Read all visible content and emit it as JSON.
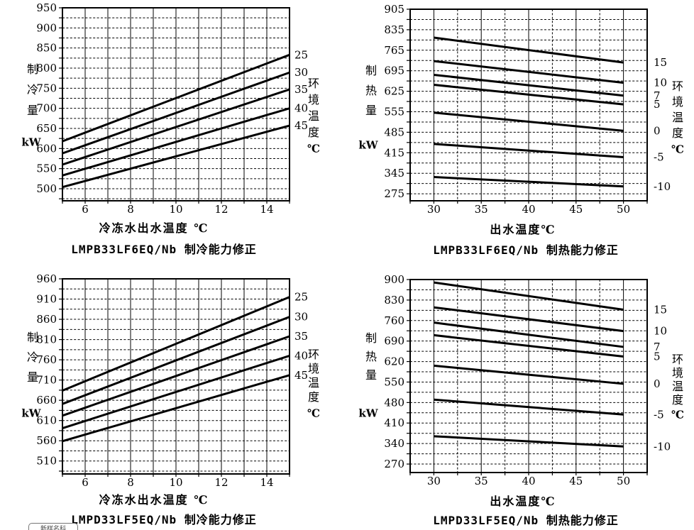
{
  "page": {
    "background": "#ffffff",
    "ink_color": "#000000"
  },
  "watermark_badge": {
    "text": "新样名科"
  },
  "chart_data": [
    {
      "type": "line",
      "title": "LMPB33LF6EQ/Nb 制冷能力修正",
      "xlabel": "冷冻水出水温度 ℃",
      "ylabel": "制冷量",
      "ylabel_chars": [
        "制",
        "冷",
        "量"
      ],
      "ylabel_unit": "kW",
      "right_axis_label": "环境温度",
      "right_axis_chars": [
        "环",
        "境",
        "温",
        "度"
      ],
      "right_axis_unit": "℃",
      "legend_position": "right-of-curve-end",
      "grid": "horizontal-dashed, vertical-solid",
      "xlim": [
        5,
        15
      ],
      "x_grid_step": 1,
      "x_minor_dashed": false,
      "x_ticks": [
        6,
        8,
        10,
        12,
        14
      ],
      "x_data_span": [
        5,
        15
      ],
      "ylim": [
        470,
        950
      ],
      "y_ticks": [
        500,
        550,
        600,
        650,
        700,
        750,
        800,
        850,
        900,
        950
      ],
      "y_minor_step": 25,
      "series": [
        {
          "name": "25",
          "x": [
            5,
            15
          ],
          "values": [
            618,
            833
          ]
        },
        {
          "name": "30",
          "x": [
            5,
            15
          ],
          "values": [
            588,
            789
          ]
        },
        {
          "name": "35",
          "x": [
            5,
            15
          ],
          "values": [
            560,
            747
          ]
        },
        {
          "name": "40",
          "x": [
            5,
            15
          ],
          "values": [
            533,
            700
          ]
        },
        {
          "name": "45",
          "x": [
            5,
            15
          ],
          "values": [
            504,
            657
          ]
        }
      ]
    },
    {
      "type": "line",
      "title": "LMPB33LF6EQ/Nb 制热能力修正",
      "xlabel": "出水温度℃",
      "ylabel": "制热量",
      "ylabel_chars": [
        "制",
        "热",
        "量"
      ],
      "ylabel_unit": "kW",
      "right_axis_label": "环境温度",
      "right_axis_chars": [
        "环",
        "境",
        "温",
        "度"
      ],
      "right_axis_unit": "℃",
      "legend_position": "right-of-curve-end",
      "grid": "horizontal-dashed, vertical-major-solid-minor-dashed",
      "xlim": [
        27.5,
        52.5
      ],
      "x_grid_step": 2.5,
      "x_minor_dashed": true,
      "x_ticks": [
        30,
        35,
        40,
        45,
        50
      ],
      "x_data_span": [
        30,
        50
      ],
      "ylim": [
        251,
        905
      ],
      "y_ticks": [
        275,
        345,
        415,
        485,
        555,
        625,
        695,
        765,
        835,
        905
      ],
      "y_minor_step": 35,
      "series": [
        {
          "name": "15",
          "x": [
            30,
            50
          ],
          "values": [
            808,
            723
          ]
        },
        {
          "name": "10",
          "x": [
            30,
            50
          ],
          "values": [
            728,
            654
          ]
        },
        {
          "name": "7",
          "x": [
            30,
            50
          ],
          "values": [
            681,
            610
          ]
        },
        {
          "name": "5",
          "x": [
            30,
            50
          ],
          "values": [
            647,
            580
          ]
        },
        {
          "name": "0",
          "x": [
            30,
            50
          ],
          "values": [
            552,
            490
          ]
        },
        {
          "name": "-5",
          "x": [
            30,
            50
          ],
          "values": [
            445,
            400
          ]
        },
        {
          "name": "-10",
          "x": [
            30,
            50
          ],
          "values": [
            332,
            300
          ]
        }
      ]
    },
    {
      "type": "line",
      "title": "LMPD33LF5EQ/Nb 制冷能力修正",
      "xlabel": "冷冻水出水温度 ℃",
      "ylabel": "制冷量",
      "ylabel_chars": [
        "制",
        "冷",
        "量"
      ],
      "ylabel_unit": "kW",
      "right_axis_label": "环境温度",
      "right_axis_chars": [
        "环",
        "境",
        "温",
        "度"
      ],
      "right_axis_unit": "℃",
      "legend_position": "right-of-curve-end",
      "grid": "horizontal-dashed, vertical-solid",
      "xlim": [
        5,
        15
      ],
      "x_grid_step": 1,
      "x_minor_dashed": false,
      "x_ticks": [
        6,
        8,
        10,
        12,
        14
      ],
      "x_data_span": [
        5,
        15
      ],
      "ylim": [
        478,
        960
      ],
      "y_ticks": [
        510,
        560,
        610,
        660,
        710,
        760,
        810,
        860,
        910,
        960
      ],
      "y_minor_step": 25,
      "series": [
        {
          "name": "25",
          "x": [
            5,
            15
          ],
          "values": [
            684,
            915
          ]
        },
        {
          "name": "30",
          "x": [
            5,
            15
          ],
          "values": [
            651,
            866
          ]
        },
        {
          "name": "35",
          "x": [
            5,
            15
          ],
          "values": [
            622,
            818
          ]
        },
        {
          "name": "40",
          "x": [
            5,
            15
          ],
          "values": [
            591,
            770
          ]
        },
        {
          "name": "45",
          "x": [
            5,
            15
          ],
          "values": [
            559,
            722
          ]
        }
      ]
    },
    {
      "type": "line",
      "title": "LMPD33LF5EQ/Nb 制热能力修正",
      "xlabel": "出水温度℃",
      "ylabel": "制热量",
      "ylabel_chars": [
        "制",
        "热",
        "量"
      ],
      "ylabel_unit": "kW",
      "right_axis_label": "环境温度",
      "right_axis_chars": [
        "环",
        "境",
        "温",
        "度"
      ],
      "right_axis_unit": "℃",
      "legend_position": "right-of-curve-end",
      "grid": "horizontal-dashed, vertical-major-solid-minor-dashed",
      "xlim": [
        27.5,
        52.5
      ],
      "x_grid_step": 2.5,
      "x_minor_dashed": true,
      "x_ticks": [
        30,
        35,
        40,
        45,
        50
      ],
      "x_data_span": [
        30,
        50
      ],
      "ylim": [
        241,
        900
      ],
      "y_ticks": [
        270,
        340,
        410,
        480,
        550,
        620,
        690,
        760,
        830,
        900
      ],
      "y_minor_step": 35,
      "series": [
        {
          "name": "15",
          "x": [
            30,
            50
          ],
          "values": [
            890,
            797
          ]
        },
        {
          "name": "10",
          "x": [
            30,
            50
          ],
          "values": [
            805,
            724
          ]
        },
        {
          "name": "7",
          "x": [
            30,
            50
          ],
          "values": [
            753,
            670
          ]
        },
        {
          "name": "5",
          "x": [
            30,
            50
          ],
          "values": [
            710,
            637
          ]
        },
        {
          "name": "0",
          "x": [
            30,
            50
          ],
          "values": [
            606,
            544
          ]
        },
        {
          "name": "-5",
          "x": [
            30,
            50
          ],
          "values": [
            490,
            439
          ]
        },
        {
          "name": "-10",
          "x": [
            30,
            50
          ],
          "values": [
            365,
            330
          ]
        }
      ]
    }
  ]
}
